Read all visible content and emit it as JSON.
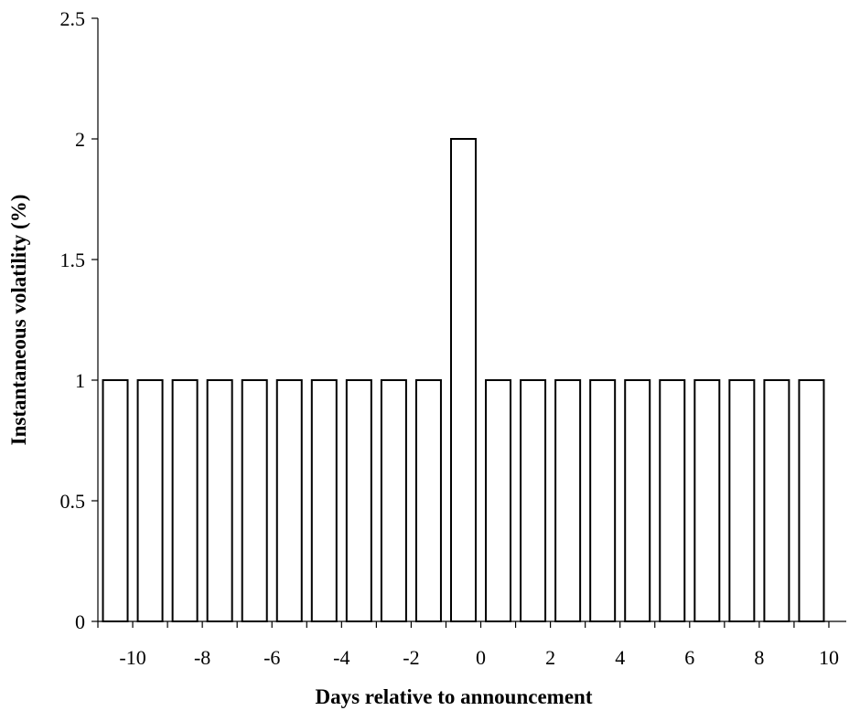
{
  "chart_data": {
    "type": "bar",
    "xlabel": "Days relative to announcement",
    "ylabel": "Instantaneous volatility (%)",
    "ylim": [
      0,
      2.5
    ],
    "y_ticks": [
      "0",
      "0.5",
      "1",
      "1.5",
      "2",
      "2.5"
    ],
    "x_tick_labels": [
      "-10",
      "-8",
      "-6",
      "-4",
      "-2",
      "0",
      "2",
      "4",
      "6",
      "8",
      "10"
    ],
    "categories": [
      -10.5,
      -9.5,
      -8.5,
      -7.5,
      -6.5,
      -5.5,
      -4.5,
      -3.5,
      -2.5,
      -1.5,
      -0.5,
      0.5,
      1.5,
      2.5,
      3.5,
      4.5,
      5.5,
      6.5,
      7.5,
      8.5,
      9.5
    ],
    "values": [
      1,
      1,
      1,
      1,
      1,
      1,
      1,
      1,
      1,
      1,
      2,
      1,
      1,
      1,
      1,
      1,
      1,
      1,
      1,
      1,
      1
    ],
    "grid": false,
    "legend": "none",
    "bar_fill": "#ffffff",
    "bar_stroke": "#000000"
  }
}
